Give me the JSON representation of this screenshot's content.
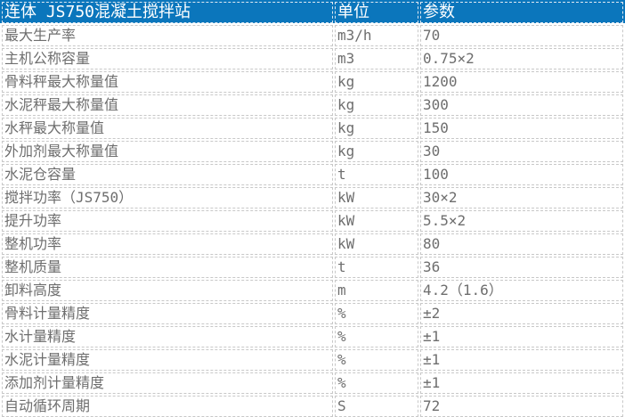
{
  "colors": {
    "header_bg": "#0b76bc",
    "header_text": "#ffffff",
    "body_text": "#6e6e6e",
    "cell_border": "#c8c8c8"
  },
  "header": {
    "title": "连体 JS750混凝土搅拌站",
    "unit": "单位",
    "param": "参数"
  },
  "rows": [
    {
      "name": "最大生产率",
      "unit": "m3/h",
      "value": "70"
    },
    {
      "name": "主机公称容量",
      "unit": "m3",
      "value": "0.75×2"
    },
    {
      "name": "骨料秤最大称量值",
      "unit": "kg",
      "value": "1200"
    },
    {
      "name": "水泥秤最大称量值",
      "unit": "kg",
      "value": "300"
    },
    {
      "name": "水秤最大称量值",
      "unit": "kg",
      "value": "150"
    },
    {
      "name": "外加剂最大称量值",
      "unit": "kg",
      "value": "30"
    },
    {
      "name": "水泥仓容量",
      "unit": "t",
      "value": "100"
    },
    {
      "name": "搅拌功率（JS750）",
      "unit": "kW",
      "value": "30×2"
    },
    {
      "name": "提升功率",
      "unit": "kW",
      "value": "5.5×2"
    },
    {
      "name": "整机功率",
      "unit": "kW",
      "value": "80"
    },
    {
      "name": "整机质量",
      "unit": "t",
      "value": "36"
    },
    {
      "name": "卸料高度",
      "unit": "m",
      "value": "4.2（1.6）"
    },
    {
      "name": "骨料计量精度",
      "unit": "%",
      "value": "±2"
    },
    {
      "name": "水计量精度",
      "unit": "%",
      "value": "±1"
    },
    {
      "name": "水泥计量精度",
      "unit": "%",
      "value": "±1"
    },
    {
      "name": "添加剂计量精度",
      "unit": "%",
      "value": "±1"
    },
    {
      "name": "自动循环周期",
      "unit": "S",
      "value": "72"
    }
  ]
}
